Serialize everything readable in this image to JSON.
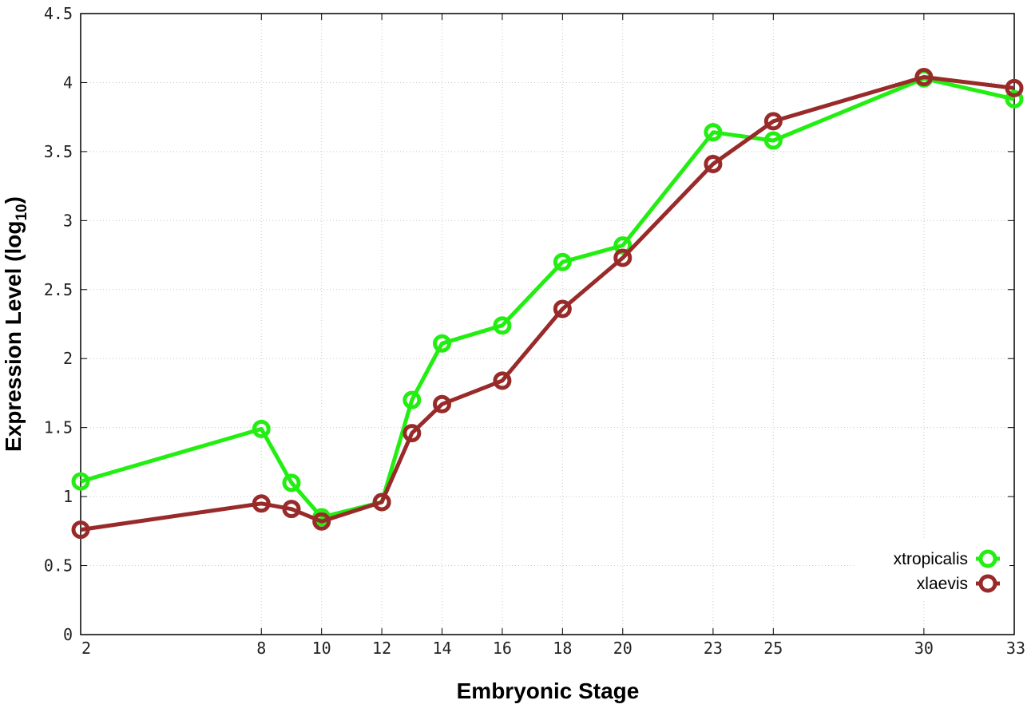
{
  "chart_data": {
    "type": "line",
    "xlabel": "Embryonic Stage",
    "ylabel": "Expression Level (log",
    "ylabel_sub": "10",
    "ylabel_close": ")",
    "xlim": [
      2,
      33
    ],
    "ylim": [
      0,
      4.5
    ],
    "x_ticks": [
      2,
      8,
      10,
      12,
      14,
      16,
      18,
      20,
      23,
      25,
      30,
      33
    ],
    "y_ticks": [
      0,
      0.5,
      1,
      1.5,
      2,
      2.5,
      3,
      3.5,
      4,
      4.5
    ],
    "y_tick_labels": [
      "0",
      "0.5",
      "1",
      "1.5",
      "2",
      "2.5",
      "3",
      "3.5",
      "4",
      "4.5"
    ],
    "grid": true,
    "legend_position": "bottom-right",
    "series": [
      {
        "name": "xtropicalis",
        "color": "#22ee11",
        "x": [
          2,
          8,
          9,
          10,
          12,
          13,
          14,
          16,
          18,
          20,
          23,
          25,
          30,
          33
        ],
        "y": [
          1.11,
          1.49,
          1.1,
          0.85,
          0.96,
          1.7,
          2.11,
          2.24,
          2.7,
          2.82,
          3.64,
          3.58,
          4.03,
          3.88
        ]
      },
      {
        "name": "xlaevis",
        "color": "#992a2a",
        "x": [
          2,
          8,
          9,
          10,
          12,
          13,
          14,
          16,
          18,
          20,
          23,
          25,
          30,
          33
        ],
        "y": [
          0.76,
          0.95,
          0.91,
          0.82,
          0.96,
          1.46,
          1.67,
          1.84,
          2.36,
          2.73,
          3.41,
          3.72,
          4.04,
          3.96
        ]
      }
    ]
  }
}
